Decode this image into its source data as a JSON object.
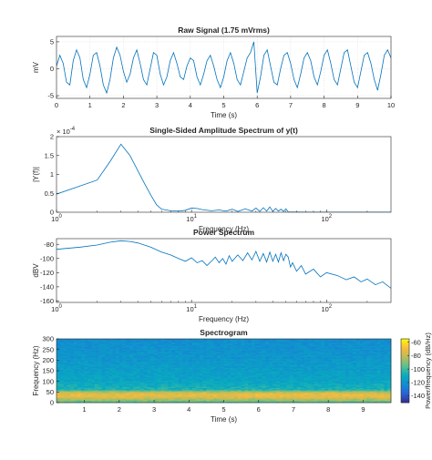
{
  "figure": {
    "background": "#ffffff",
    "line_color": "#0072bd"
  },
  "chart_data": [
    {
      "id": "raw",
      "type": "line",
      "title": "Raw Signal (1.75 mVrms)",
      "xlabel": "Time (s)",
      "ylabel": "mV",
      "xlim": [
        0,
        10
      ],
      "ylim": [
        -5.5,
        6
      ],
      "xticks": [
        0,
        1,
        2,
        3,
        4,
        5,
        6,
        7,
        8,
        9,
        10
      ],
      "yticks": [
        -5,
        0,
        5
      ],
      "grid": true,
      "series": [
        {
          "x": [
            0,
            0.1,
            0.2,
            0.3,
            0.4,
            0.5,
            0.6,
            0.7,
            0.8,
            0.9,
            1,
            1.1,
            1.2,
            1.3,
            1.4,
            1.5,
            1.6,
            1.7,
            1.8,
            1.9,
            2,
            2.1,
            2.2,
            2.3,
            2.4,
            2.5,
            2.6,
            2.7,
            2.8,
            2.9,
            3,
            3.1,
            3.2,
            3.3,
            3.4,
            3.5,
            3.6,
            3.7,
            3.8,
            3.9,
            4,
            4.1,
            4.2,
            4.3,
            4.4,
            4.5,
            4.6,
            4.7,
            4.8,
            4.9,
            5,
            5.1,
            5.2,
            5.3,
            5.4,
            5.5,
            5.6,
            5.7,
            5.8,
            5.9,
            6,
            6.1,
            6.2,
            6.3,
            6.4,
            6.5,
            6.6,
            6.7,
            6.8,
            6.9,
            7,
            7.1,
            7.2,
            7.3,
            7.4,
            7.5,
            7.6,
            7.7,
            7.8,
            7.9,
            8,
            8.1,
            8.2,
            8.3,
            8.4,
            8.5,
            8.6,
            8.7,
            8.8,
            8.9,
            9,
            9.1,
            9.2,
            9.3,
            9.4,
            9.5,
            9.6,
            9.7,
            9.8,
            9.9,
            10
          ],
          "y": [
            0.5,
            2.5,
            1,
            -2.5,
            -3,
            1.5,
            3.5,
            2,
            -2,
            -3.5,
            -1,
            2.5,
            3,
            0.5,
            -3,
            -4.5,
            -2,
            2,
            4,
            2.5,
            -0.5,
            -2.5,
            -1,
            2,
            3.5,
            1,
            -2,
            -3,
            0,
            3,
            2.5,
            -1,
            -3,
            -1.5,
            1.5,
            3,
            1,
            -1.5,
            -2,
            0.5,
            2,
            1.5,
            -1.5,
            -3,
            -1,
            1.5,
            2.5,
            0.5,
            -2,
            -3.5,
            -1.5,
            1.5,
            3,
            1,
            -2,
            -3,
            -0.5,
            2,
            3,
            5,
            -4.5,
            -1.5,
            2.5,
            3.5,
            0.5,
            -2.5,
            -3,
            0,
            2.5,
            3,
            1,
            -2,
            -3.5,
            -1,
            2,
            3,
            1.5,
            -1.5,
            -3,
            -0.5,
            2.5,
            3.5,
            1,
            -2,
            -3,
            0,
            3,
            3.5,
            0.5,
            -2.5,
            -3.5,
            -0.5,
            2.5,
            3,
            1,
            -2,
            -4,
            -1,
            2.5,
            3.5,
            2
          ]
        }
      ]
    },
    {
      "id": "amp",
      "type": "line",
      "title": "Single-Sided Amplitude Spectrum of y(t)",
      "xlabel": "Frequency (Hz)",
      "ylabel": "|Y(f)|",
      "xscale": "log",
      "xlim": [
        1,
        300
      ],
      "xticks": [
        1,
        10,
        100
      ],
      "xticklabels": [
        "10",
        "10",
        "10"
      ],
      "xtick_exponents": [
        "0",
        "1",
        "2"
      ],
      "ylim": [
        0,
        0.0002
      ],
      "yticks": [
        0,
        5e-05,
        0.0001,
        0.00015,
        0.0002
      ],
      "yticklabels": [
        "0",
        "0.5",
        "1",
        "1.5",
        "2"
      ],
      "y_multiplier": "× 10",
      "y_multiplier_exponent": "-4",
      "grid": false,
      "series": [
        {
          "x": [
            1,
            2,
            2.5,
            3,
            3.5,
            4,
            4.5,
            5,
            5.5,
            6,
            7,
            8,
            9,
            10,
            11,
            12,
            14,
            16,
            18,
            20,
            22,
            25,
            28,
            30,
            32,
            34,
            36,
            38,
            40,
            42,
            44,
            46,
            48,
            50,
            52,
            55,
            60,
            70,
            80,
            100,
            150,
            200,
            300
          ],
          "y": [
            4.8e-05,
            8.5e-05,
            0.000135,
            0.00018,
            0.00015,
            0.00011,
            7.5e-05,
            4.5e-05,
            2e-05,
            8e-06,
            4e-06,
            3e-06,
            5e-06,
            1.1e-05,
            1e-05,
            7e-06,
            4e-06,
            6e-06,
            3e-06,
            8e-06,
            2e-06,
            9e-06,
            3e-06,
            1.1e-05,
            2e-06,
            1.2e-05,
            3e-06,
            1.4e-05,
            2e-06,
            1e-05,
            3e-06,
            8e-06,
            2e-06,
            9e-06,
            1e-06,
            5e-07,
            4e-07,
            3e-07,
            3e-07,
            2e-07,
            2e-07,
            1e-07,
            1e-07
          ]
        }
      ]
    },
    {
      "id": "power",
      "type": "line",
      "title": "Power Spectrum",
      "xlabel": "Frequency (Hz)",
      "ylabel": "dBV",
      "xscale": "log",
      "xlim": [
        1,
        300
      ],
      "xticks": [
        1,
        10,
        100
      ],
      "xticklabels": [
        "10",
        "10",
        "10"
      ],
      "xtick_exponents": [
        "0",
        "1",
        "2"
      ],
      "ylim": [
        -162,
        -72
      ],
      "yticks": [
        -160,
        -140,
        -120,
        -100,
        -80
      ],
      "grid": false,
      "series": [
        {
          "x": [
            1,
            1.5,
            2,
            2.5,
            3,
            3.5,
            4,
            5,
            6,
            7,
            8,
            9,
            10,
            11,
            12,
            13,
            14,
            15,
            16,
            17,
            18,
            19,
            20,
            22,
            24,
            26,
            28,
            30,
            32,
            34,
            36,
            38,
            40,
            42,
            44,
            46,
            48,
            50,
            52,
            54,
            56,
            60,
            65,
            70,
            80,
            90,
            100,
            120,
            140,
            160,
            180,
            200,
            230,
            260,
            300
          ],
          "y": [
            -87,
            -84,
            -81,
            -77,
            -75,
            -76,
            -78,
            -84,
            -91,
            -95,
            -100,
            -104,
            -99,
            -106,
            -103,
            -110,
            -104,
            -98,
            -106,
            -100,
            -108,
            -96,
            -104,
            -95,
            -103,
            -92,
            -102,
            -90,
            -104,
            -93,
            -105,
            -91,
            -104,
            -94,
            -105,
            -92,
            -103,
            -94,
            -98,
            -112,
            -106,
            -118,
            -110,
            -122,
            -115,
            -126,
            -120,
            -124,
            -130,
            -126,
            -133,
            -129,
            -137,
            -133,
            -142
          ]
        }
      ]
    },
    {
      "id": "spec",
      "type": "heatmap",
      "title": "Spectrogram",
      "xlabel": "Time (s)",
      "ylabel": "Frequency (Hz)",
      "xlim": [
        0.2,
        9.8
      ],
      "ylim": [
        0,
        300
      ],
      "xticks": [
        1,
        2,
        3,
        4,
        5,
        6,
        7,
        8,
        9
      ],
      "yticks": [
        0,
        50,
        100,
        150,
        200,
        250,
        300
      ],
      "colorbar": {
        "label": "Power/frequency (dB/Hz)",
        "range": [
          -150,
          -55
        ],
        "ticks": [
          -140,
          -120,
          -100,
          -80,
          -60
        ]
      },
      "profile": [
        {
          "freq": 0,
          "db": -100
        },
        {
          "freq": 10,
          "db": -90
        },
        {
          "freq": 20,
          "db": -80
        },
        {
          "freq": 30,
          "db": -72
        },
        {
          "freq": 40,
          "db": -72
        },
        {
          "freq": 50,
          "db": -80
        },
        {
          "freq": 60,
          "db": -105
        },
        {
          "freq": 100,
          "db": -112
        },
        {
          "freq": 200,
          "db": -118
        },
        {
          "freq": 300,
          "db": -122
        }
      ]
    }
  ]
}
